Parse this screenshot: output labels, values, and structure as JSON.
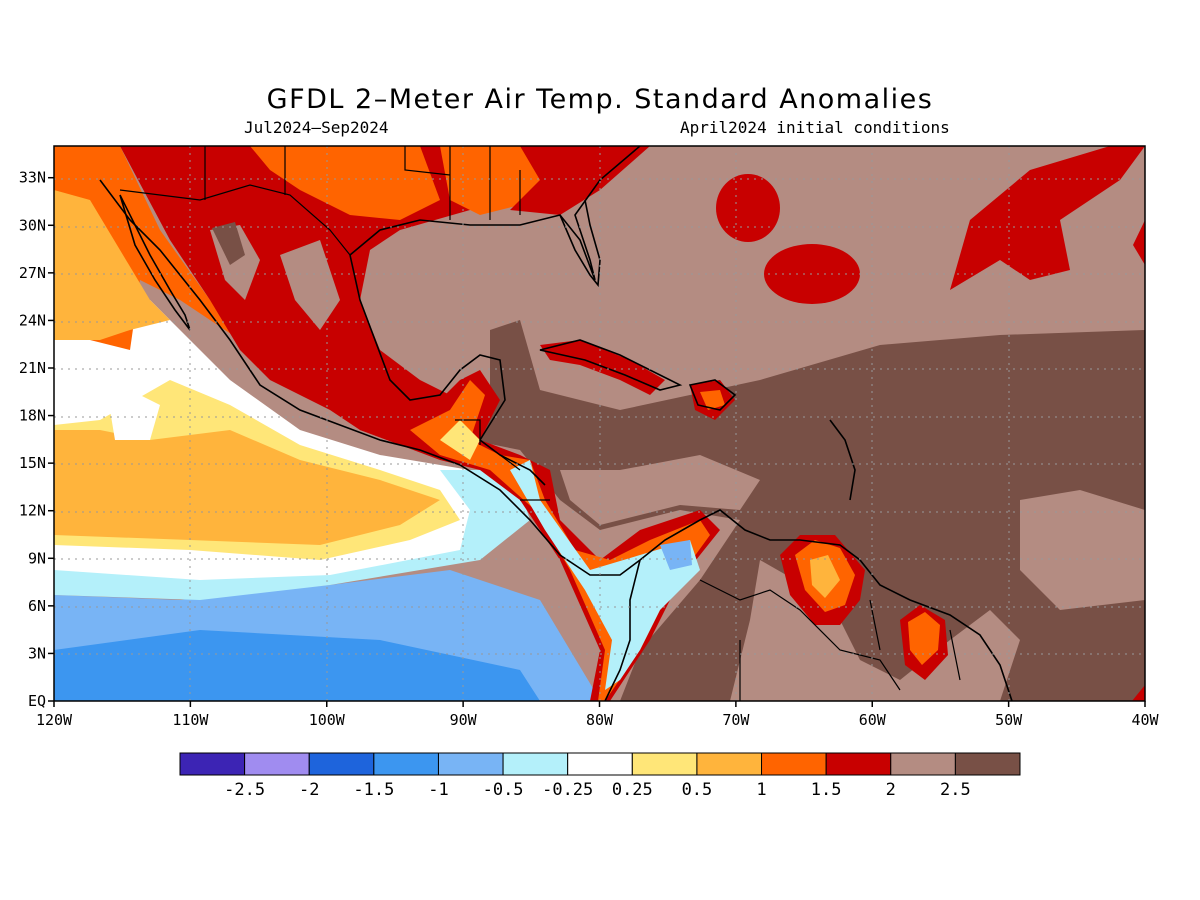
{
  "title": "GFDL 2–Meter Air Temp. Standard Anomalies",
  "subtitle_left": "Jul2024–Sep2024",
  "subtitle_right": "April2024 initial conditions",
  "lon_ticks": [
    "120W",
    "110W",
    "100W",
    "90W",
    "80W",
    "70W",
    "60W",
    "50W",
    "40W"
  ],
  "lat_ticks": [
    "EQ",
    "3N",
    "6N",
    "9N",
    "12N",
    "15N",
    "18N",
    "21N",
    "24N",
    "27N",
    "30N",
    "33N"
  ],
  "colorbar": {
    "colors": [
      "#3c24b4",
      "#a08cf0",
      "#1e64dc",
      "#3c96f0",
      "#78b4f5",
      "#b4f0fa",
      "#ffffff",
      "#ffe678",
      "#ffb43c",
      "#ff6400",
      "#c80000",
      "#b48c82",
      "#785046"
    ],
    "labels": [
      "-2.5",
      "-2",
      "-1.5",
      "-1",
      "-0.5",
      "-0.25",
      "0.25",
      "0.5",
      "1",
      "1.5",
      "2",
      "2.5"
    ]
  },
  "map_colors": {
    "dark_brown": "#785046",
    "light_brown": "#b48c82",
    "red": "#c80000",
    "orange": "#ff6400",
    "light_orange": "#ffb43c",
    "yellow": "#ffe678",
    "white": "#ffffff",
    "pale_blue": "#b4f0fa",
    "light_blue": "#78b4f5",
    "blue": "#3c96f0"
  }
}
